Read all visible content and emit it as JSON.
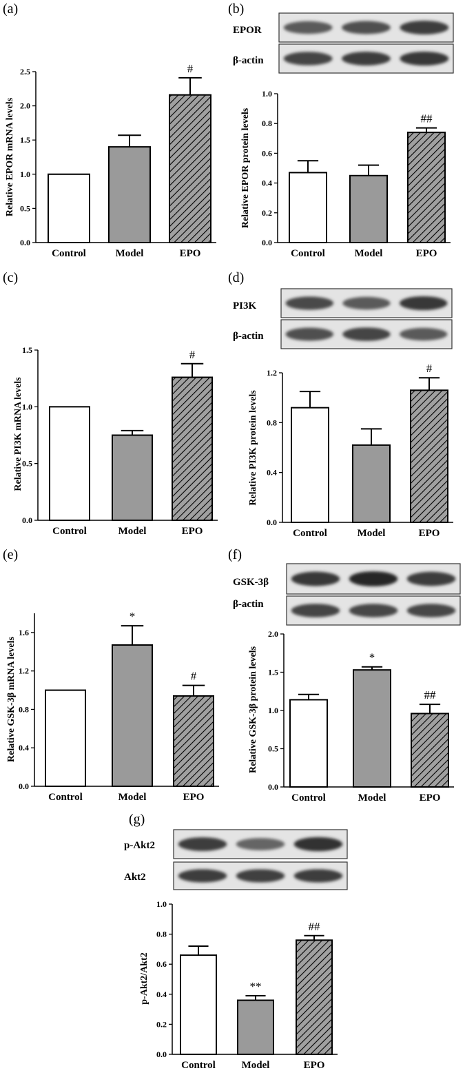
{
  "chart_data": [
    {
      "panel": "(a)",
      "type": "bar",
      "categories": [
        "Control",
        "Model",
        "EPO"
      ],
      "values": [
        1.0,
        1.4,
        2.16
      ],
      "errors": [
        0,
        0.17,
        0.25
      ],
      "annotations": [
        "",
        "",
        "#"
      ],
      "ylabel": "Relative EPOR mRNA levels",
      "ylim": [
        0,
        2.5
      ],
      "yticks": [
        "0.0",
        "0.5",
        "1.0",
        "1.5",
        "2.0",
        "2.5"
      ],
      "fills": [
        "white",
        "gray",
        "hatch"
      ]
    },
    {
      "panel": "(b)",
      "type": "bar",
      "categories": [
        "Control",
        "Model",
        "EPO"
      ],
      "values": [
        0.47,
        0.45,
        0.74
      ],
      "errors": [
        0.08,
        0.07,
        0.03
      ],
      "annotations": [
        "",
        "",
        "##"
      ],
      "ylabel": "Relative EPOR protein levels",
      "ylim": [
        0,
        1.0
      ],
      "yticks": [
        "0.0",
        "0.2",
        "0.4",
        "0.6",
        "0.8",
        "1.0"
      ],
      "blot_labels": [
        "EPOR",
        "β-actin"
      ],
      "fills": [
        "white",
        "gray",
        "hatch"
      ]
    },
    {
      "panel": "(c)",
      "type": "bar",
      "categories": [
        "Control",
        "Model",
        "EPO"
      ],
      "values": [
        1.0,
        0.75,
        1.26
      ],
      "errors": [
        0,
        0.04,
        0.12
      ],
      "annotations": [
        "",
        "",
        "#"
      ],
      "ylabel": "Relative PI3K mRNA levels",
      "ylim": [
        0,
        1.5
      ],
      "yticks": [
        "0.0",
        "0.5",
        "1.0",
        "1.5"
      ],
      "fills": [
        "white",
        "gray",
        "hatch"
      ]
    },
    {
      "panel": "(d)",
      "type": "bar",
      "categories": [
        "Control",
        "Model",
        "EPO"
      ],
      "values": [
        0.92,
        0.62,
        1.06
      ],
      "errors": [
        0.13,
        0.13,
        0.1
      ],
      "annotations": [
        "",
        "",
        "#"
      ],
      "ylabel": "Relative PI3K protein levels",
      "ylim": [
        0,
        1.2
      ],
      "yticks": [
        "0.0",
        "0.4",
        "0.8",
        "1.2"
      ],
      "blot_labels": [
        "PI3K",
        "β-actin"
      ],
      "fills": [
        "white",
        "gray",
        "hatch"
      ]
    },
    {
      "panel": "(e)",
      "type": "bar",
      "categories": [
        "Control",
        "Model",
        "EPO"
      ],
      "values": [
        1.0,
        1.47,
        0.94
      ],
      "errors": [
        0,
        0.2,
        0.11
      ],
      "annotations": [
        "",
        "*",
        "#"
      ],
      "ylabel": "Relative GSK-3β mRNA levels",
      "ylim": [
        0,
        1.8
      ],
      "yticks": [
        "0.0",
        "0.4",
        "0.8",
        "1.2",
        "1.6"
      ],
      "fills": [
        "white",
        "gray",
        "hatch"
      ]
    },
    {
      "panel": "(f)",
      "type": "bar",
      "categories": [
        "Control",
        "Model",
        "EPO"
      ],
      "values": [
        1.14,
        1.53,
        0.96
      ],
      "errors": [
        0.07,
        0.04,
        0.12
      ],
      "annotations": [
        "",
        "*",
        "##"
      ],
      "ylabel": "Relative GSK-3β protein levels",
      "ylim": [
        0,
        2.0
      ],
      "yticks": [
        "0.0",
        "0.5",
        "1.0",
        "1.5",
        "2.0"
      ],
      "blot_labels": [
        "GSK-3β",
        "β-actin"
      ],
      "fills": [
        "white",
        "gray",
        "hatch"
      ]
    },
    {
      "panel": "(g)",
      "type": "bar",
      "categories": [
        "Control",
        "Model",
        "EPO"
      ],
      "values": [
        0.66,
        0.36,
        0.76
      ],
      "errors": [
        0.06,
        0.03,
        0.03
      ],
      "annotations": [
        "",
        "**",
        "##"
      ],
      "ylabel": "p-Akt2/Akt2",
      "ylim": [
        0,
        1.0
      ],
      "yticks": [
        "0.0",
        "0.2",
        "0.4",
        "0.6",
        "0.8",
        "1.0"
      ],
      "blot_labels": [
        "p-Akt2",
        "Akt2"
      ],
      "fills": [
        "white",
        "gray",
        "hatch"
      ]
    }
  ],
  "colors": {
    "bar_gray": "#9a9a9a",
    "hatch_bg": "#a0a0a0",
    "ink": "#000000"
  }
}
